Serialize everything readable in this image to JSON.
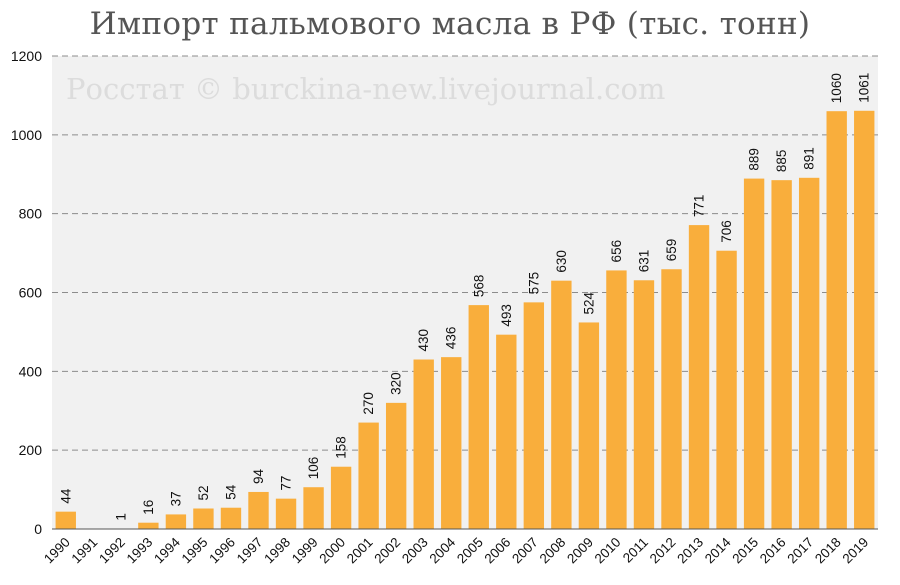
{
  "title": "Импорт пальмового масла в РФ (тыс. тонн)",
  "watermark": "Росстат © burckina-new.livejournal.com",
  "colors": {
    "bar": "#F9AE3C",
    "plot_background": "#F1F1F1",
    "grid": "#8c8c8c"
  },
  "chart_data": {
    "type": "bar",
    "title": "Импорт пальмового масла в РФ (тыс. тонн)",
    "xlabel": "",
    "ylabel": "",
    "ylim": [
      0,
      1200
    ],
    "yticks": [
      0,
      200,
      400,
      600,
      800,
      1000,
      1200
    ],
    "grid": true,
    "legend": "none",
    "categories": [
      "1990",
      "1991",
      "1992",
      "1993",
      "1994",
      "1995",
      "1996",
      "1997",
      "1998",
      "1999",
      "2000",
      "2001",
      "2002",
      "2003",
      "2004",
      "2005",
      "2006",
      "2007",
      "2008",
      "2009",
      "2010",
      "2011",
      "2012",
      "2013",
      "2014",
      "2015",
      "2016",
      "2017",
      "2018",
      "2019"
    ],
    "values": [
      44,
      null,
      1,
      16,
      37,
      52,
      54,
      94,
      77,
      106,
      158,
      270,
      320,
      430,
      436,
      568,
      493,
      575,
      630,
      524,
      656,
      631,
      659,
      771,
      706,
      889,
      885,
      891,
      1060,
      1061
    ]
  }
}
